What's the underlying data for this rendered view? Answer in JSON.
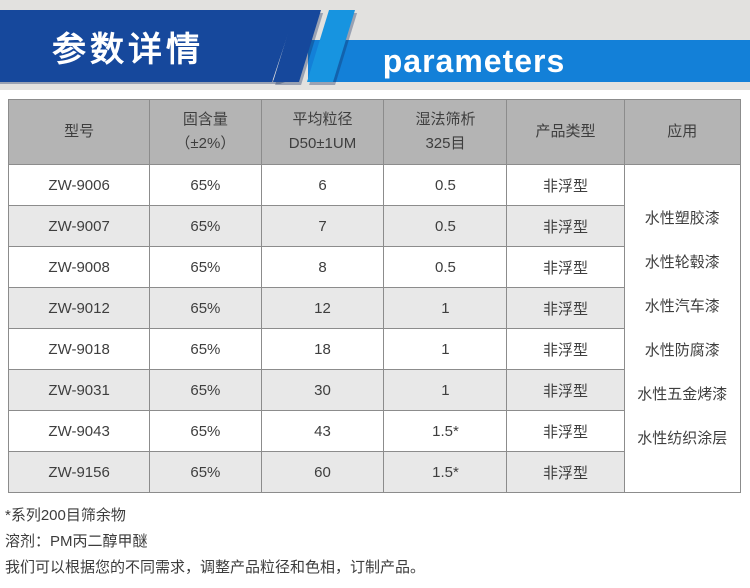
{
  "header": {
    "title_cn": "参数详情",
    "title_en": "parameters"
  },
  "colors": {
    "dark_blue": "#16489C",
    "light_blue": "#1380D8",
    "stripe_light_blue": "#1794E0",
    "strip_gray": "#E2E1DF",
    "table_header_gray": "#B4B4B4",
    "alt_row_gray": "#E8E8E8",
    "border_gray": "#8C8C8C",
    "text_dark": "#3E3E3E"
  },
  "table": {
    "columns": [
      {
        "line1": "型号"
      },
      {
        "line1": "固含量",
        "line2": "（±2%）"
      },
      {
        "line1": "平均粒径",
        "line2": "D50±1UM"
      },
      {
        "line1": "湿法筛析",
        "line2": "325目"
      },
      {
        "line1": "产品类型"
      },
      {
        "line1": "应用"
      }
    ],
    "rows": [
      {
        "model": "ZW-9006",
        "solid_content": "65%",
        "particle_size": "6",
        "wet_sieve": "0.5",
        "product_type": "非浮型"
      },
      {
        "model": "ZW-9007",
        "solid_content": "65%",
        "particle_size": "7",
        "wet_sieve": "0.5",
        "product_type": "非浮型"
      },
      {
        "model": "ZW-9008",
        "solid_content": "65%",
        "particle_size": "8",
        "wet_sieve": "0.5",
        "product_type": "非浮型"
      },
      {
        "model": "ZW-9012",
        "solid_content": "65%",
        "particle_size": "12",
        "wet_sieve": "1",
        "product_type": "非浮型"
      },
      {
        "model": "ZW-9018",
        "solid_content": "65%",
        "particle_size": "18",
        "wet_sieve": "1",
        "product_type": "非浮型"
      },
      {
        "model": "ZW-9031",
        "solid_content": "65%",
        "particle_size": "30",
        "wet_sieve": "1",
        "product_type": "非浮型"
      },
      {
        "model": "ZW-9043",
        "solid_content": "65%",
        "particle_size": "43",
        "wet_sieve": "1.5*",
        "product_type": "非浮型"
      },
      {
        "model": "ZW-9156",
        "solid_content": "65%",
        "particle_size": "60",
        "wet_sieve": "1.5*",
        "product_type": "非浮型"
      }
    ],
    "applications": [
      "水性塑胶漆",
      "水性轮毂漆",
      "水性汽车漆",
      "水性防腐漆",
      "水性五金烤漆",
      "水性纺织涂层"
    ]
  },
  "footnotes": [
    "*系列200目筛余物",
    "溶剂：PM丙二醇甲醚",
    "我们可以根据您的不同需求，调整产品粒径和色相，订制产品。"
  ]
}
